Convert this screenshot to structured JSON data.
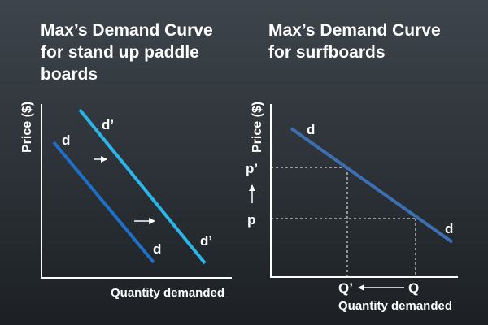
{
  "left_panel": {
    "title_lines": [
      "Max’s Demand Curve",
      "for stand up paddle",
      "boards"
    ],
    "y_axis_label": "Price ($)",
    "x_axis_label": "Quantity demanded",
    "curve_d_labels": [
      "d",
      "d"
    ],
    "curve_d_prime_labels": [
      "d’",
      "d’"
    ],
    "colors": {
      "d": "#1f6fc9",
      "d_prime": "#2bb5e8",
      "axis": "#ffffff"
    }
  },
  "right_panel": {
    "title_lines": [
      "Max’s Demand Curve",
      "for surfboards"
    ],
    "y_axis_label": "Price ($)",
    "x_axis_label": "Quantity demanded",
    "curve_labels": [
      "d",
      "d"
    ],
    "price_labels": {
      "p_prime": "p’",
      "p": "p"
    },
    "quantity_labels": {
      "q_prime": "Q’",
      "q": "Q"
    },
    "colors": {
      "d": "#3d6fb3",
      "axis": "#ffffff",
      "guide": "#ffffff"
    }
  }
}
